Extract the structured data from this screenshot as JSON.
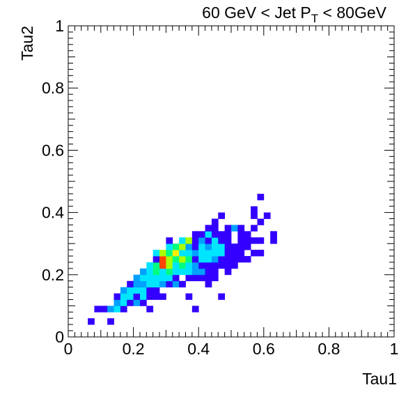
{
  "chart_data": {
    "type": "heatmap",
    "title": {
      "prefix": "60 GeV < Jet P",
      "subscript": "T",
      "suffix": " < 80GeV"
    },
    "xlabel": "Tau1",
    "ylabel": "Tau2",
    "xlim": [
      0,
      1
    ],
    "ylim": [
      0,
      1
    ],
    "x_ticks": [
      "0",
      "0.2",
      "0.4",
      "0.6",
      "0.8",
      "1"
    ],
    "y_ticks": [
      "0",
      "0.2",
      "0.4",
      "0.6",
      "0.8",
      "1"
    ],
    "bin_width": 0.02,
    "grid": false,
    "legend": "none",
    "colorscale": [
      "#5000ff",
      "#3300ff",
      "#00a0ff",
      "#00e5ff",
      "#00ff80",
      "#aaff00",
      "#ffee00",
      "#ff4400"
    ],
    "cells": [
      [
        0.06,
        0.04,
        1
      ],
      [
        0.08,
        0.08,
        1
      ],
      [
        0.1,
        0.08,
        1
      ],
      [
        0.12,
        0.04,
        1
      ],
      [
        0.12,
        0.08,
        2
      ],
      [
        0.14,
        0.08,
        3
      ],
      [
        0.16,
        0.08,
        1
      ],
      [
        0.24,
        0.08,
        1
      ],
      [
        0.38,
        0.08,
        1
      ],
      [
        0.14,
        0.1,
        2
      ],
      [
        0.16,
        0.1,
        3
      ],
      [
        0.18,
        0.1,
        1
      ],
      [
        0.2,
        0.1,
        2
      ],
      [
        0.22,
        0.1,
        1
      ],
      [
        0.14,
        0.12,
        1
      ],
      [
        0.16,
        0.12,
        3
      ],
      [
        0.18,
        0.12,
        3
      ],
      [
        0.2,
        0.12,
        1
      ],
      [
        0.22,
        0.12,
        3
      ],
      [
        0.24,
        0.12,
        1
      ],
      [
        0.26,
        0.12,
        1
      ],
      [
        0.28,
        0.12,
        1
      ],
      [
        0.36,
        0.12,
        1
      ],
      [
        0.46,
        0.12,
        1
      ],
      [
        0.16,
        0.14,
        2
      ],
      [
        0.18,
        0.14,
        3
      ],
      [
        0.2,
        0.14,
        3
      ],
      [
        0.22,
        0.14,
        3
      ],
      [
        0.24,
        0.14,
        1
      ],
      [
        0.26,
        0.14,
        1
      ],
      [
        0.18,
        0.16,
        1
      ],
      [
        0.2,
        0.16,
        2
      ],
      [
        0.22,
        0.16,
        2
      ],
      [
        0.24,
        0.16,
        3
      ],
      [
        0.26,
        0.16,
        3
      ],
      [
        0.28,
        0.16,
        2
      ],
      [
        0.3,
        0.16,
        1
      ],
      [
        0.32,
        0.16,
        2
      ],
      [
        0.34,
        0.16,
        1
      ],
      [
        0.42,
        0.16,
        1
      ],
      [
        0.2,
        0.18,
        2
      ],
      [
        0.22,
        0.18,
        3
      ],
      [
        0.24,
        0.18,
        3
      ],
      [
        0.26,
        0.18,
        3
      ],
      [
        0.28,
        0.18,
        3
      ],
      [
        0.3,
        0.18,
        3
      ],
      [
        0.32,
        0.18,
        1
      ],
      [
        0.36,
        0.18,
        1
      ],
      [
        0.38,
        0.18,
        1
      ],
      [
        0.4,
        0.18,
        1
      ],
      [
        0.42,
        0.18,
        1
      ],
      [
        0.44,
        0.18,
        1
      ],
      [
        0.22,
        0.2,
        2
      ],
      [
        0.24,
        0.2,
        3
      ],
      [
        0.26,
        0.2,
        4
      ],
      [
        0.28,
        0.2,
        3
      ],
      [
        0.3,
        0.2,
        4
      ],
      [
        0.32,
        0.2,
        3
      ],
      [
        0.34,
        0.2,
        3
      ],
      [
        0.36,
        0.2,
        3
      ],
      [
        0.38,
        0.2,
        2
      ],
      [
        0.4,
        0.2,
        2
      ],
      [
        0.42,
        0.2,
        1
      ],
      [
        0.44,
        0.2,
        1
      ],
      [
        0.48,
        0.2,
        1
      ],
      [
        0.24,
        0.22,
        3
      ],
      [
        0.26,
        0.22,
        4
      ],
      [
        0.28,
        0.22,
        7
      ],
      [
        0.3,
        0.22,
        5
      ],
      [
        0.32,
        0.22,
        3
      ],
      [
        0.34,
        0.22,
        4
      ],
      [
        0.36,
        0.22,
        3
      ],
      [
        0.38,
        0.22,
        2
      ],
      [
        0.4,
        0.22,
        1
      ],
      [
        0.42,
        0.22,
        1
      ],
      [
        0.44,
        0.22,
        1
      ],
      [
        0.46,
        0.22,
        1
      ],
      [
        0.48,
        0.22,
        1
      ],
      [
        0.5,
        0.22,
        1
      ],
      [
        0.26,
        0.24,
        1
      ],
      [
        0.28,
        0.24,
        7
      ],
      [
        0.3,
        0.24,
        5
      ],
      [
        0.32,
        0.24,
        4
      ],
      [
        0.34,
        0.24,
        5
      ],
      [
        0.36,
        0.24,
        4
      ],
      [
        0.38,
        0.24,
        1
      ],
      [
        0.4,
        0.24,
        3
      ],
      [
        0.42,
        0.24,
        3
      ],
      [
        0.44,
        0.24,
        2
      ],
      [
        0.46,
        0.24,
        1
      ],
      [
        0.48,
        0.24,
        1
      ],
      [
        0.5,
        0.24,
        1
      ],
      [
        0.52,
        0.24,
        1
      ],
      [
        0.54,
        0.24,
        1
      ],
      [
        0.26,
        0.26,
        3
      ],
      [
        0.28,
        0.26,
        5
      ],
      [
        0.3,
        0.26,
        4
      ],
      [
        0.32,
        0.26,
        6
      ],
      [
        0.34,
        0.26,
        3
      ],
      [
        0.36,
        0.26,
        3
      ],
      [
        0.38,
        0.26,
        2
      ],
      [
        0.4,
        0.26,
        3
      ],
      [
        0.42,
        0.26,
        3
      ],
      [
        0.44,
        0.26,
        3
      ],
      [
        0.46,
        0.26,
        3
      ],
      [
        0.48,
        0.26,
        1
      ],
      [
        0.5,
        0.26,
        1
      ],
      [
        0.52,
        0.26,
        1
      ],
      [
        0.56,
        0.26,
        1
      ],
      [
        0.58,
        0.26,
        1
      ],
      [
        0.3,
        0.28,
        3
      ],
      [
        0.32,
        0.28,
        4
      ],
      [
        0.34,
        0.28,
        5
      ],
      [
        0.36,
        0.28,
        2
      ],
      [
        0.38,
        0.28,
        1
      ],
      [
        0.4,
        0.28,
        3
      ],
      [
        0.42,
        0.28,
        2
      ],
      [
        0.44,
        0.28,
        3
      ],
      [
        0.46,
        0.28,
        3
      ],
      [
        0.48,
        0.28,
        1
      ],
      [
        0.5,
        0.28,
        1
      ],
      [
        0.52,
        0.28,
        1
      ],
      [
        0.54,
        0.28,
        1
      ],
      [
        0.3,
        0.3,
        1
      ],
      [
        0.34,
        0.3,
        3
      ],
      [
        0.36,
        0.3,
        5
      ],
      [
        0.38,
        0.3,
        1
      ],
      [
        0.4,
        0.3,
        2
      ],
      [
        0.42,
        0.3,
        1
      ],
      [
        0.44,
        0.3,
        3
      ],
      [
        0.46,
        0.3,
        1
      ],
      [
        0.48,
        0.3,
        1
      ],
      [
        0.52,
        0.3,
        1
      ],
      [
        0.54,
        0.3,
        1
      ],
      [
        0.56,
        0.3,
        1
      ],
      [
        0.58,
        0.3,
        1
      ],
      [
        0.62,
        0.3,
        1
      ],
      [
        0.38,
        0.32,
        1
      ],
      [
        0.4,
        0.32,
        1
      ],
      [
        0.42,
        0.32,
        3
      ],
      [
        0.44,
        0.32,
        1
      ],
      [
        0.46,
        0.32,
        1
      ],
      [
        0.48,
        0.32,
        1
      ],
      [
        0.52,
        0.32,
        1
      ],
      [
        0.54,
        0.32,
        1
      ],
      [
        0.62,
        0.32,
        1
      ],
      [
        0.42,
        0.34,
        1
      ],
      [
        0.44,
        0.34,
        1
      ],
      [
        0.48,
        0.34,
        1
      ],
      [
        0.5,
        0.34,
        2
      ],
      [
        0.52,
        0.34,
        1
      ],
      [
        0.56,
        0.34,
        1
      ],
      [
        0.44,
        0.36,
        1
      ],
      [
        0.58,
        0.36,
        1
      ],
      [
        0.46,
        0.38,
        1
      ],
      [
        0.56,
        0.38,
        1
      ],
      [
        0.6,
        0.38,
        1
      ],
      [
        0.56,
        0.4,
        1
      ],
      [
        0.58,
        0.44,
        1
      ]
    ]
  }
}
